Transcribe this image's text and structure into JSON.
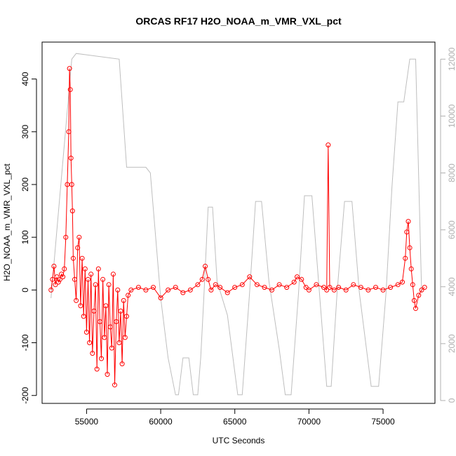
{
  "chart_data": {
    "type": "line",
    "title": "ORCAS RF17 H2O_NOAA_m_VMR_VXL_pct",
    "xlabel": "UTC Seconds",
    "ylabel": "H2O_NOAA_m_VMR_VXL_pct",
    "xlim": [
      52000,
      78500
    ],
    "ylim": [
      -215,
      470
    ],
    "y2lim": [
      -100,
      12600
    ],
    "x_ticks": [
      55000,
      60000,
      65000,
      70000,
      75000
    ],
    "x_tick_labels": [
      "55000",
      "60000",
      "65000",
      "70000",
      "75000"
    ],
    "y_ticks": [
      -200,
      -100,
      0,
      100,
      200,
      300,
      400
    ],
    "y_tick_labels": [
      "-200",
      "-100",
      "0",
      "100",
      "200",
      "300",
      "400"
    ],
    "y2_ticks": [
      0,
      2000,
      4000,
      6000,
      8000,
      10000,
      12000
    ],
    "y2_tick_labels": [
      "0",
      "2000",
      "4000",
      "6000",
      "8000",
      "10000",
      "12000"
    ],
    "grid": false,
    "colors": {
      "primary": "#ff0000",
      "secondary": "#bebebe"
    },
    "series": [
      {
        "axis": "left",
        "style": "line+points",
        "x": [
          52600,
          52700,
          52800,
          52900,
          53000,
          53100,
          53200,
          53300,
          53400,
          53500,
          53600,
          53700,
          53800,
          53850,
          53900,
          53950,
          54000,
          54050,
          54100,
          54200,
          54300,
          54400,
          54500,
          54600,
          54700,
          54800,
          54900,
          55000,
          55100,
          55200,
          55300,
          55400,
          55500,
          55600,
          55700,
          55800,
          55900,
          56000,
          56100,
          56200,
          56300,
          56400,
          56500,
          56600,
          56700,
          56800,
          56900,
          57000,
          57100,
          57200,
          57300,
          57400,
          57500,
          57600,
          57700,
          57800,
          58000,
          58500,
          59000,
          59500,
          60000,
          60500,
          61000,
          61500,
          62000,
          62500,
          62800,
          63000,
          63200,
          63400,
          63700,
          64000,
          64500,
          65000,
          65500,
          66000,
          66500,
          67000,
          67500,
          68000,
          68500,
          69000,
          69200,
          69500,
          69800,
          70000,
          70500,
          71000,
          71200,
          71300,
          71400,
          71700,
          72000,
          72500,
          73000,
          73500,
          74000,
          74500,
          75000,
          75500,
          76000,
          76300,
          76500,
          76600,
          76700,
          76800,
          76900,
          77000,
          77100,
          77200,
          77400,
          77600,
          77800
        ],
        "y": [
          0,
          20,
          45,
          10,
          25,
          15,
          20,
          30,
          25,
          40,
          100,
          200,
          300,
          420,
          380,
          250,
          200,
          150,
          60,
          20,
          -20,
          80,
          100,
          -30,
          60,
          -50,
          40,
          -80,
          20,
          -100,
          30,
          -120,
          -40,
          10,
          -150,
          40,
          -60,
          -130,
          20,
          -90,
          -30,
          -160,
          10,
          -70,
          -110,
          30,
          -180,
          -60,
          0,
          -100,
          -40,
          -140,
          -20,
          -90,
          -50,
          -10,
          0,
          5,
          0,
          5,
          -15,
          0,
          5,
          -5,
          0,
          10,
          20,
          45,
          20,
          0,
          10,
          5,
          -5,
          5,
          10,
          25,
          10,
          5,
          0,
          10,
          5,
          15,
          25,
          20,
          5,
          0,
          10,
          5,
          0,
          275,
          5,
          0,
          5,
          0,
          10,
          5,
          0,
          5,
          0,
          5,
          10,
          15,
          60,
          110,
          130,
          80,
          40,
          10,
          -20,
          -35,
          -10,
          0,
          5
        ]
      },
      {
        "axis": "right",
        "style": "line",
        "x": [
          52600,
          53000,
          53500,
          54000,
          54300,
          57200,
          57700,
          58000,
          59000,
          59300,
          60000,
          60500,
          61000,
          61200,
          61500,
          61900,
          62200,
          62500,
          62700,
          62900,
          63200,
          63500,
          63800,
          64500,
          65200,
          65500,
          66000,
          66400,
          66800,
          67300,
          68000,
          68400,
          68800,
          69300,
          69700,
          70200,
          71200,
          71500,
          71900,
          72400,
          72900,
          73400,
          74200,
          74700,
          75200,
          75600,
          76000,
          76400,
          76800,
          77200,
          77600
        ],
        "y": [
          3600,
          6000,
          9000,
          12000,
          12200,
          12000,
          8200,
          8200,
          8200,
          8000,
          3600,
          1500,
          200,
          200,
          1500,
          1500,
          200,
          200,
          1500,
          3500,
          6800,
          6800,
          4200,
          3000,
          200,
          200,
          3800,
          7000,
          7000,
          4200,
          1800,
          200,
          200,
          3800,
          7200,
          7200,
          500,
          500,
          3800,
          7000,
          7000,
          3800,
          500,
          500,
          3800,
          7500,
          10500,
          10500,
          12000,
          12000,
          3800
        ]
      }
    ]
  }
}
